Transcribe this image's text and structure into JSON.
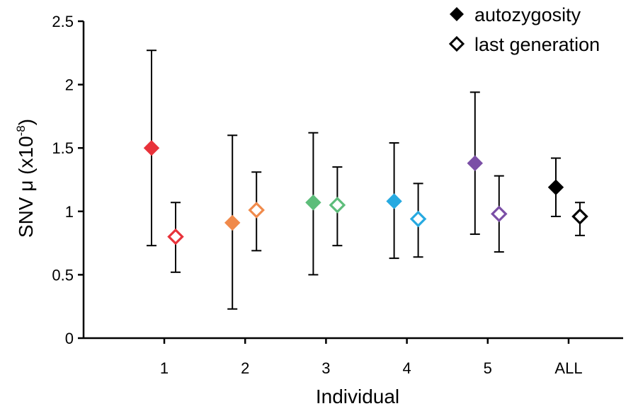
{
  "chart_data": {
    "type": "scatter",
    "title": "",
    "xlabel": "Individual",
    "ylabel": "SNV μ (x10",
    "ylabel_superscript": "-8",
    "ylabel_suffix": ")",
    "categories": [
      "1",
      "2",
      "3",
      "4",
      "5",
      "ALL"
    ],
    "ylim": [
      0,
      2.5
    ],
    "yticks": [
      "0",
      "0.5",
      "1",
      "1.5",
      "2",
      "2.5"
    ],
    "grid": false,
    "legend_position": "top-right",
    "colors": [
      "#e8323a",
      "#f08a4b",
      "#5dbd7a",
      "#27aae1",
      "#7b4fa6",
      "#000000"
    ],
    "series": [
      {
        "name": "autozygosity",
        "marker": "filled-diamond",
        "values": [
          1.5,
          0.91,
          1.07,
          1.08,
          1.38,
          1.19
        ],
        "err_low": [
          0.73,
          0.23,
          0.5,
          0.63,
          0.82,
          0.96
        ],
        "err_high": [
          2.27,
          1.6,
          1.62,
          1.54,
          1.94,
          1.42
        ]
      },
      {
        "name": "last generation",
        "marker": "open-diamond",
        "values": [
          0.8,
          1.01,
          1.05,
          0.94,
          0.98,
          0.96
        ],
        "err_low": [
          0.52,
          0.69,
          0.73,
          0.64,
          0.68,
          0.81
        ],
        "err_high": [
          1.07,
          1.31,
          1.35,
          1.22,
          1.28,
          1.07
        ]
      }
    ]
  }
}
